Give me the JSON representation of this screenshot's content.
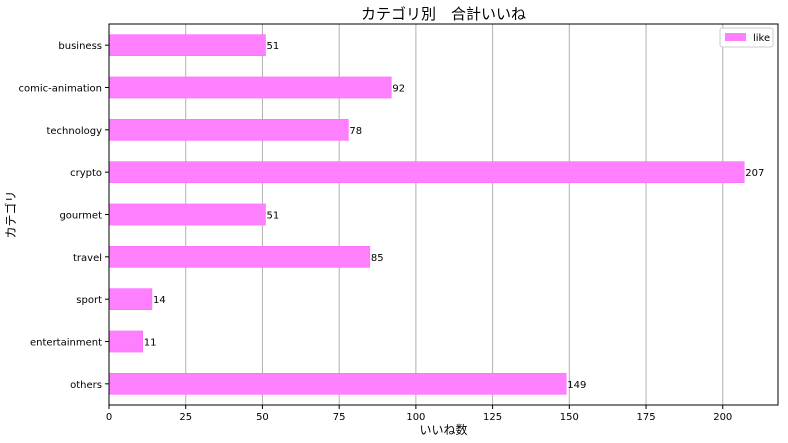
{
  "chart_data": {
    "type": "bar",
    "orientation": "horizontal",
    "title": "カテゴリ別　合計いいね",
    "xlabel": "いいね数",
    "ylabel": "カテゴリ",
    "categories": [
      "business",
      "comic-animation",
      "technology",
      "crypto",
      "gourmet",
      "travel",
      "sport",
      "entertainment",
      "others"
    ],
    "series": [
      {
        "name": "like",
        "values": [
          51,
          92,
          78,
          207,
          51,
          85,
          14,
          11,
          149
        ]
      }
    ],
    "data_labels": [
      "51",
      "92",
      "78",
      "207",
      "51",
      "85",
      "14",
      "11",
      "149"
    ],
    "xlim": [
      0,
      218
    ],
    "xticks": [
      0,
      25,
      50,
      75,
      100,
      125,
      150,
      175,
      200
    ],
    "xtick_labels": [
      "0",
      "25",
      "50",
      "75",
      "100",
      "125",
      "150",
      "175",
      "200"
    ],
    "grid": "vertical",
    "legend_position": "top-right",
    "colors": {
      "bar": "#ff80ff",
      "bar_edge": "#ff66ff",
      "grid": "#b0b0b0",
      "axis": "#000000"
    }
  }
}
